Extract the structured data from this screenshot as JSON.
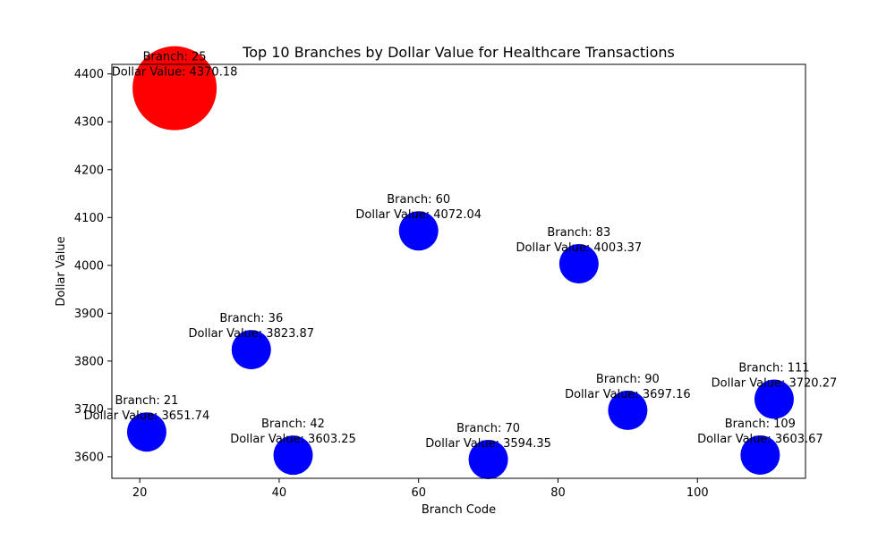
{
  "chart_data": {
    "type": "scatter",
    "title": "Top 10 Branches by Dollar Value for Healthcare Transactions",
    "xlabel": "Branch Code",
    "ylabel": "Dollar Value",
    "xlim": [
      16,
      115.5
    ],
    "ylim": [
      3555,
      4420
    ],
    "xticks": [
      20,
      40,
      60,
      80,
      100
    ],
    "yticks": [
      3600,
      3700,
      3800,
      3900,
      4000,
      4100,
      4200,
      4300,
      4400
    ],
    "grid": false,
    "colors": {
      "highlight": "#ff0000",
      "default": "#0000ff"
    },
    "points": [
      {
        "branch": 25,
        "value": 4370.18,
        "highlight": true,
        "label_line1": "Branch: 25",
        "label_line2": "Dollar Value: 4370.18"
      },
      {
        "branch": 60,
        "value": 4072.04,
        "highlight": false,
        "label_line1": "Branch: 60",
        "label_line2": "Dollar Value: 4072.04"
      },
      {
        "branch": 83,
        "value": 4003.37,
        "highlight": false,
        "label_line1": "Branch: 83",
        "label_line2": "Dollar Value: 4003.37"
      },
      {
        "branch": 36,
        "value": 3823.87,
        "highlight": false,
        "label_line1": "Branch: 36",
        "label_line2": "Dollar Value: 3823.87"
      },
      {
        "branch": 111,
        "value": 3720.27,
        "highlight": false,
        "label_line1": "Branch: 111",
        "label_line2": "Dollar Value: 3720.27"
      },
      {
        "branch": 90,
        "value": 3697.16,
        "highlight": false,
        "label_line1": "Branch: 90",
        "label_line2": "Dollar Value: 3697.16"
      },
      {
        "branch": 21,
        "value": 3651.74,
        "highlight": false,
        "label_line1": "Branch: 21",
        "label_line2": "Dollar Value: 3651.74"
      },
      {
        "branch": 109,
        "value": 3603.67,
        "highlight": false,
        "label_line1": "Branch: 109",
        "label_line2": "Dollar Value: 3603.67"
      },
      {
        "branch": 42,
        "value": 3603.25,
        "highlight": false,
        "label_line1": "Branch: 42",
        "label_line2": "Dollar Value: 3603.25"
      },
      {
        "branch": 70,
        "value": 3594.35,
        "highlight": false,
        "label_line1": "Branch: 70",
        "label_line2": "Dollar Value: 3594.35"
      }
    ]
  }
}
